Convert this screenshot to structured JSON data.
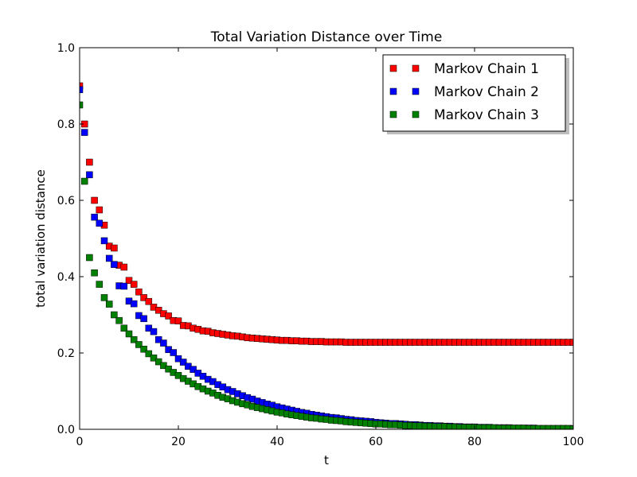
{
  "chart_data": {
    "type": "scatter",
    "title": "Total Variation Distance over Time",
    "xlabel": "t",
    "ylabel": "total variation distance",
    "xlim": [
      0,
      100
    ],
    "ylim": [
      0.0,
      1.0
    ],
    "x_ticks": [
      "0",
      "20",
      "40",
      "60",
      "80",
      "100"
    ],
    "y_ticks": [
      "0.0",
      "0.2",
      "0.4",
      "0.6",
      "0.8",
      "1.0"
    ],
    "grid": false,
    "legend_position": "top-right",
    "marker": "square",
    "x": [
      0,
      1,
      2,
      3,
      4,
      5,
      6,
      7,
      8,
      9,
      10,
      11,
      12,
      13,
      14,
      15,
      16,
      17,
      18,
      19,
      20,
      21,
      22,
      23,
      24,
      25,
      26,
      27,
      28,
      29,
      30,
      31,
      32,
      33,
      34,
      35,
      36,
      37,
      38,
      39,
      40,
      41,
      42,
      43,
      44,
      45,
      46,
      47,
      48,
      49,
      50,
      51,
      52,
      53,
      54,
      55,
      56,
      57,
      58,
      59,
      60,
      61,
      62,
      63,
      64,
      65,
      66,
      67,
      68,
      69,
      70,
      71,
      72,
      73,
      74,
      75,
      76,
      77,
      78,
      79,
      80,
      81,
      82,
      83,
      84,
      85,
      86,
      87,
      88,
      89,
      90,
      91,
      92,
      93,
      94,
      95,
      96,
      97,
      98,
      99,
      100
    ],
    "series": [
      {
        "name": "Markov Chain 1",
        "color": "#ff0000",
        "values": [
          0.9,
          0.8,
          0.7,
          0.6,
          0.575,
          0.535,
          0.48,
          0.475,
          0.43,
          0.425,
          0.39,
          0.38,
          0.36,
          0.345,
          0.335,
          0.32,
          0.312,
          0.303,
          0.297,
          0.285,
          0.284,
          0.272,
          0.271,
          0.265,
          0.262,
          0.258,
          0.257,
          0.253,
          0.251,
          0.249,
          0.247,
          0.245,
          0.244,
          0.242,
          0.24,
          0.239,
          0.238,
          0.237,
          0.236,
          0.235,
          0.234,
          0.233,
          0.233,
          0.232,
          0.232,
          0.231,
          0.231,
          0.23,
          0.23,
          0.23,
          0.229,
          0.229,
          0.229,
          0.229,
          0.228,
          0.228,
          0.228,
          0.228,
          0.228,
          0.228,
          0.228,
          0.228,
          0.228,
          0.228,
          0.228,
          0.228,
          0.228,
          0.228,
          0.228,
          0.228,
          0.228,
          0.228,
          0.228,
          0.228,
          0.228,
          0.228,
          0.228,
          0.228,
          0.228,
          0.228,
          0.228,
          0.228,
          0.228,
          0.228,
          0.228,
          0.228,
          0.228,
          0.228,
          0.228,
          0.228,
          0.228,
          0.228,
          0.228,
          0.228,
          0.228,
          0.228,
          0.228,
          0.228,
          0.228,
          0.228,
          0.228
        ]
      },
      {
        "name": "Markov Chain 2",
        "color": "#0000ff",
        "values": [
          0.89,
          0.778,
          0.667,
          0.556,
          0.54,
          0.494,
          0.448,
          0.432,
          0.376,
          0.375,
          0.336,
          0.329,
          0.298,
          0.29,
          0.265,
          0.256,
          0.235,
          0.226,
          0.209,
          0.201,
          0.185,
          0.176,
          0.165,
          0.157,
          0.147,
          0.139,
          0.131,
          0.125,
          0.117,
          0.111,
          0.104,
          0.099,
          0.093,
          0.088,
          0.083,
          0.079,
          0.074,
          0.07,
          0.066,
          0.063,
          0.059,
          0.056,
          0.053,
          0.05,
          0.047,
          0.044,
          0.042,
          0.039,
          0.037,
          0.035,
          0.033,
          0.031,
          0.03,
          0.028,
          0.026,
          0.025,
          0.023,
          0.022,
          0.021,
          0.02,
          0.018,
          0.017,
          0.016,
          0.015,
          0.015,
          0.014,
          0.013,
          0.012,
          0.012,
          0.011,
          0.01,
          0.01,
          0.009,
          0.009,
          0.008,
          0.008,
          0.007,
          0.007,
          0.006,
          0.006,
          0.006,
          0.005,
          0.005,
          0.005,
          0.004,
          0.004,
          0.004,
          0.004,
          0.003,
          0.003,
          0.003,
          0.003,
          0.003,
          0.002,
          0.002,
          0.002,
          0.002,
          0.002,
          0.002,
          0.002,
          0.002
        ]
      },
      {
        "name": "Markov Chain 3",
        "color": "#008000",
        "values": [
          0.85,
          0.65,
          0.45,
          0.41,
          0.38,
          0.345,
          0.328,
          0.3,
          0.285,
          0.265,
          0.25,
          0.235,
          0.222,
          0.21,
          0.198,
          0.187,
          0.177,
          0.167,
          0.158,
          0.149,
          0.141,
          0.133,
          0.126,
          0.119,
          0.112,
          0.106,
          0.1,
          0.095,
          0.089,
          0.084,
          0.08,
          0.075,
          0.071,
          0.067,
          0.064,
          0.06,
          0.057,
          0.054,
          0.051,
          0.048,
          0.045,
          0.043,
          0.04,
          0.038,
          0.036,
          0.034,
          0.032,
          0.03,
          0.029,
          0.027,
          0.026,
          0.024,
          0.023,
          0.022,
          0.02,
          0.019,
          0.018,
          0.017,
          0.016,
          0.015,
          0.014,
          0.014,
          0.013,
          0.012,
          0.012,
          0.011,
          0.01,
          0.01,
          0.009,
          0.009,
          0.008,
          0.008,
          0.007,
          0.007,
          0.007,
          0.006,
          0.006,
          0.005,
          0.005,
          0.005,
          0.005,
          0.004,
          0.004,
          0.004,
          0.004,
          0.003,
          0.003,
          0.003,
          0.003,
          0.003,
          0.003,
          0.002,
          0.002,
          0.002,
          0.002,
          0.002,
          0.002,
          0.002,
          0.002,
          0.002,
          0.001
        ]
      }
    ]
  }
}
